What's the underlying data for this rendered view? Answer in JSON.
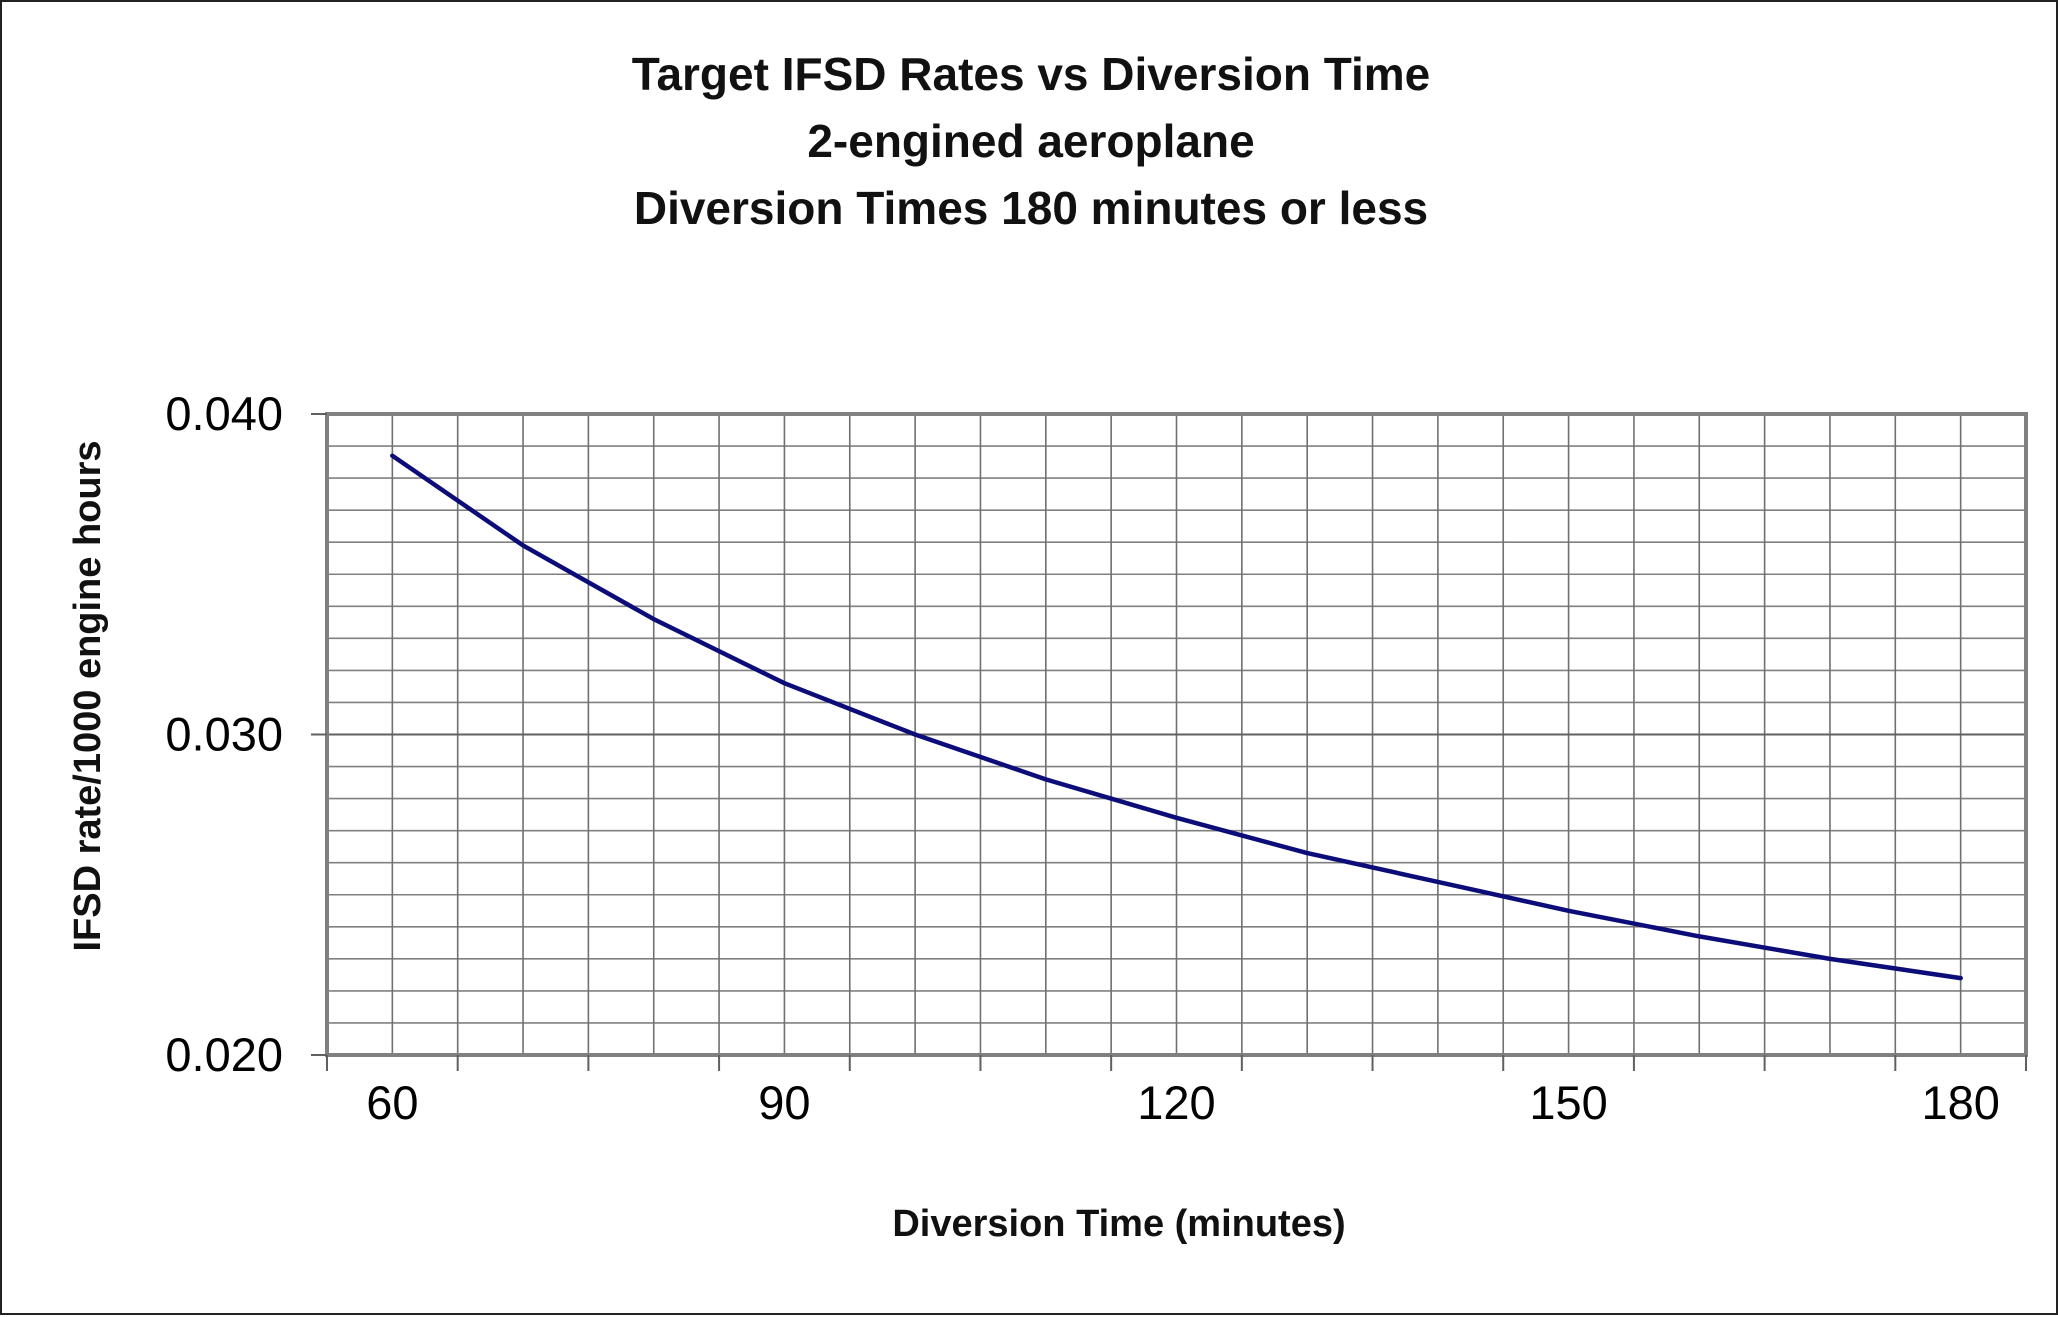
{
  "chart_data": {
    "type": "line",
    "title_lines": [
      "Target IFSD Rates vs Diversion Time",
      "2-engined aeroplane",
      "Diversion Times 180 minutes or less"
    ],
    "xlabel": "Diversion Time (minutes)",
    "ylabel": "IFSD rate/1000 engine hours",
    "xlim": [
      55,
      185
    ],
    "ylim": [
      0.02,
      0.04
    ],
    "x_ticks": [
      "60",
      "90",
      "120",
      "150",
      "180"
    ],
    "x_tick_values": [
      60,
      90,
      120,
      150,
      180
    ],
    "y_ticks": [
      "0.040",
      "0.030",
      "0.020"
    ],
    "y_tick_values": [
      0.04,
      0.03,
      0.02
    ],
    "grid": true,
    "series": [
      {
        "color": "#0d0d7a",
        "x": [
          60,
          70,
          80,
          90,
          100,
          110,
          120,
          130,
          140,
          150,
          160,
          170,
          180
        ],
        "y": [
          0.0387,
          0.0359,
          0.0336,
          0.0316,
          0.03,
          0.0286,
          0.0274,
          0.0263,
          0.0254,
          0.0245,
          0.0237,
          0.023,
          0.0224
        ]
      }
    ]
  }
}
